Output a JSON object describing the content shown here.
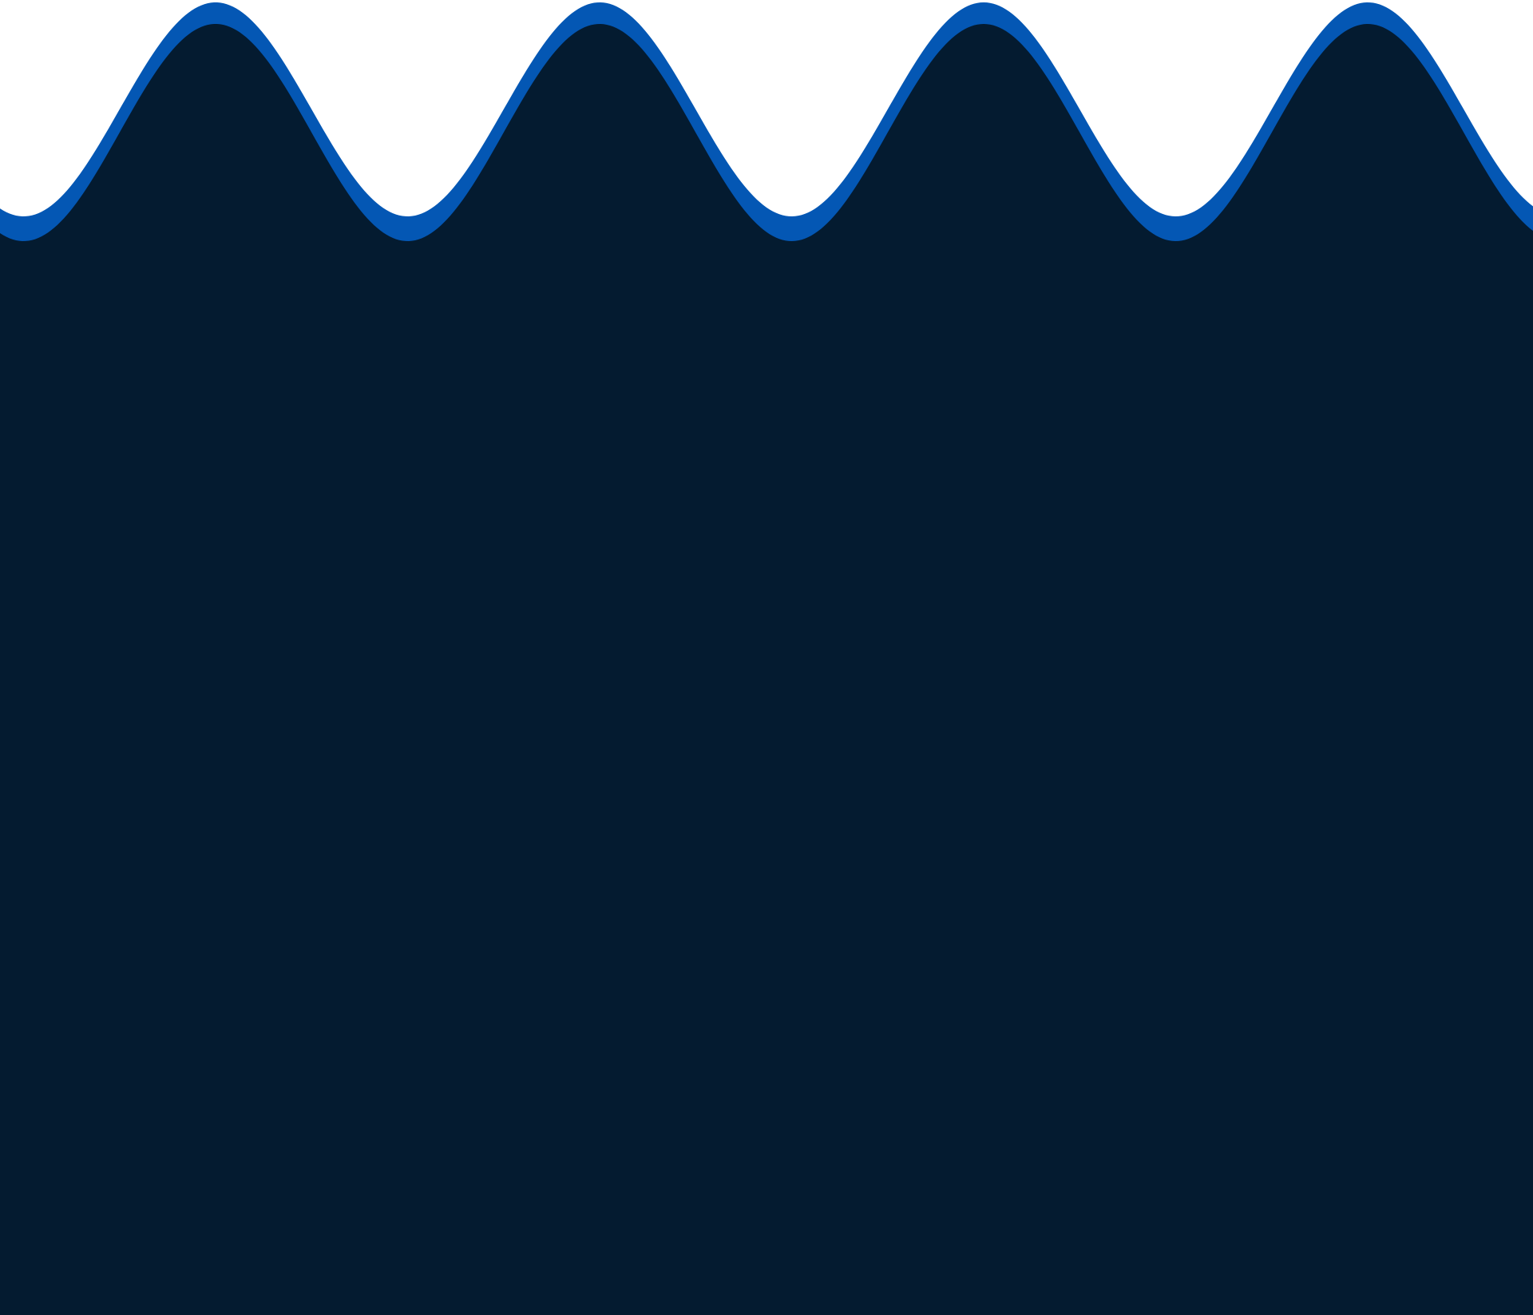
{
  "colors": {
    "background": "#ffffff",
    "accent_wave": "#0457b4",
    "panel_fill": "#041b30"
  },
  "decoration": {
    "shape": "sine-wave-edge",
    "crest_count": 4
  }
}
